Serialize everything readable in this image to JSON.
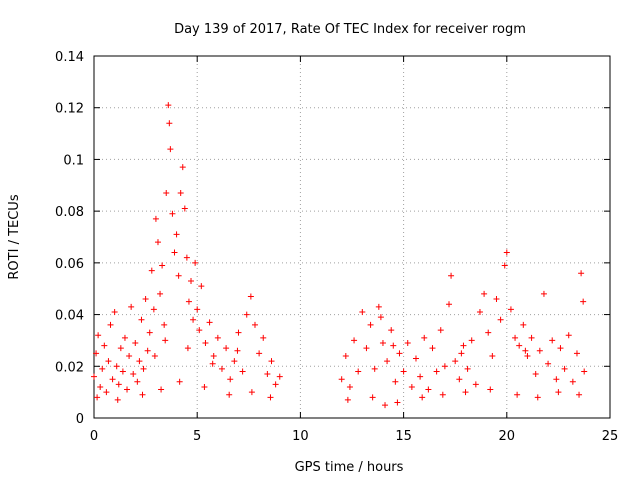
{
  "chart_data": {
    "type": "scatter",
    "title": "Day 139 of 2017, Rate Of TEC Index for receiver rogm",
    "xlabel": "GPS time / hours",
    "ylabel": "ROTI / TECUs",
    "xlim": [
      0,
      25
    ],
    "ylim": [
      0,
      0.14
    ],
    "x_ticks": [
      0,
      5,
      10,
      15,
      20,
      25
    ],
    "x_tick_labels": [
      "0",
      "5",
      "10",
      "15",
      "20",
      "25"
    ],
    "y_ticks": [
      0,
      0.02,
      0.04,
      0.06,
      0.08,
      0.1,
      0.12,
      0.14
    ],
    "y_tick_labels": [
      "0",
      "0.02",
      "0.04",
      "0.06",
      "0.08",
      "0.1",
      "0.12",
      "0.14"
    ],
    "grid": true,
    "marker": "plus",
    "marker_color": "#ff0000",
    "series": [
      {
        "points": [
          [
            0.0,
            0.016
          ],
          [
            0.1,
            0.025
          ],
          [
            0.2,
            0.032
          ],
          [
            0.3,
            0.012
          ],
          [
            0.4,
            0.019
          ],
          [
            0.5,
            0.028
          ],
          [
            0.6,
            0.01
          ],
          [
            0.7,
            0.022
          ],
          [
            0.8,
            0.036
          ],
          [
            0.9,
            0.015
          ],
          [
            1.0,
            0.041
          ],
          [
            1.1,
            0.02
          ],
          [
            1.2,
            0.013
          ],
          [
            1.3,
            0.027
          ],
          [
            1.4,
            0.018
          ],
          [
            1.5,
            0.031
          ],
          [
            1.6,
            0.011
          ],
          [
            1.7,
            0.024
          ],
          [
            1.8,
            0.043
          ],
          [
            1.9,
            0.017
          ],
          [
            2.0,
            0.029
          ],
          [
            2.1,
            0.014
          ],
          [
            2.2,
            0.022
          ],
          [
            2.3,
            0.038
          ],
          [
            2.4,
            0.019
          ],
          [
            2.5,
            0.046
          ],
          [
            2.6,
            0.026
          ],
          [
            2.7,
            0.033
          ],
          [
            2.8,
            0.057
          ],
          [
            2.9,
            0.042
          ],
          [
            3.0,
            0.077
          ],
          [
            3.1,
            0.068
          ],
          [
            3.2,
            0.048
          ],
          [
            3.3,
            0.059
          ],
          [
            3.4,
            0.036
          ],
          [
            3.5,
            0.087
          ],
          [
            3.6,
            0.121
          ],
          [
            3.65,
            0.114
          ],
          [
            3.7,
            0.104
          ],
          [
            3.8,
            0.079
          ],
          [
            3.9,
            0.064
          ],
          [
            4.0,
            0.071
          ],
          [
            4.1,
            0.055
          ],
          [
            4.2,
            0.087
          ],
          [
            4.3,
            0.097
          ],
          [
            4.4,
            0.081
          ],
          [
            4.5,
            0.062
          ],
          [
            4.6,
            0.045
          ],
          [
            4.7,
            0.053
          ],
          [
            4.8,
            0.038
          ],
          [
            4.9,
            0.06
          ],
          [
            5.0,
            0.042
          ],
          [
            5.1,
            0.034
          ],
          [
            5.2,
            0.051
          ],
          [
            5.4,
            0.029
          ],
          [
            5.6,
            0.037
          ],
          [
            5.8,
            0.024
          ],
          [
            6.0,
            0.031
          ],
          [
            6.2,
            0.019
          ],
          [
            6.4,
            0.027
          ],
          [
            6.6,
            0.015
          ],
          [
            6.8,
            0.022
          ],
          [
            7.0,
            0.033
          ],
          [
            7.2,
            0.018
          ],
          [
            7.4,
            0.04
          ],
          [
            7.6,
            0.047
          ],
          [
            7.8,
            0.036
          ],
          [
            8.0,
            0.025
          ],
          [
            8.2,
            0.031
          ],
          [
            8.4,
            0.017
          ],
          [
            8.6,
            0.022
          ],
          [
            8.8,
            0.013
          ],
          [
            9.0,
            0.016
          ],
          [
            0.15,
            0.008
          ],
          [
            1.15,
            0.007
          ],
          [
            2.35,
            0.009
          ],
          [
            3.25,
            0.011
          ],
          [
            4.15,
            0.014
          ],
          [
            5.35,
            0.012
          ],
          [
            6.55,
            0.009
          ],
          [
            7.65,
            0.01
          ],
          [
            8.55,
            0.008
          ],
          [
            2.95,
            0.024
          ],
          [
            3.45,
            0.03
          ],
          [
            4.55,
            0.027
          ],
          [
            5.75,
            0.021
          ],
          [
            6.95,
            0.026
          ],
          [
            12.0,
            0.015
          ],
          [
            12.2,
            0.024
          ],
          [
            12.4,
            0.012
          ],
          [
            12.6,
            0.03
          ],
          [
            12.8,
            0.018
          ],
          [
            13.0,
            0.041
          ],
          [
            13.2,
            0.027
          ],
          [
            13.4,
            0.036
          ],
          [
            13.6,
            0.019
          ],
          [
            13.8,
            0.043
          ],
          [
            14.0,
            0.029
          ],
          [
            14.2,
            0.022
          ],
          [
            14.4,
            0.034
          ],
          [
            14.6,
            0.014
          ],
          [
            14.8,
            0.025
          ],
          [
            15.0,
            0.018
          ],
          [
            15.2,
            0.029
          ],
          [
            15.4,
            0.012
          ],
          [
            15.6,
            0.023
          ],
          [
            15.8,
            0.016
          ],
          [
            16.0,
            0.031
          ],
          [
            16.2,
            0.011
          ],
          [
            16.4,
            0.027
          ],
          [
            16.6,
            0.018
          ],
          [
            16.8,
            0.034
          ],
          [
            17.0,
            0.02
          ],
          [
            17.2,
            0.044
          ],
          [
            17.3,
            0.055
          ],
          [
            17.5,
            0.022
          ],
          [
            17.7,
            0.015
          ],
          [
            17.9,
            0.028
          ],
          [
            18.1,
            0.019
          ],
          [
            18.3,
            0.03
          ],
          [
            18.5,
            0.013
          ],
          [
            18.7,
            0.041
          ],
          [
            18.9,
            0.048
          ],
          [
            19.1,
            0.033
          ],
          [
            19.3,
            0.024
          ],
          [
            19.5,
            0.046
          ],
          [
            19.7,
            0.038
          ],
          [
            19.9,
            0.059
          ],
          [
            20.0,
            0.064
          ],
          [
            20.2,
            0.042
          ],
          [
            20.4,
            0.031
          ],
          [
            20.6,
            0.028
          ],
          [
            20.8,
            0.036
          ],
          [
            21.0,
            0.024
          ],
          [
            21.2,
            0.031
          ],
          [
            21.4,
            0.017
          ],
          [
            21.6,
            0.026
          ],
          [
            21.8,
            0.048
          ],
          [
            22.0,
            0.021
          ],
          [
            22.2,
            0.03
          ],
          [
            22.4,
            0.015
          ],
          [
            22.6,
            0.027
          ],
          [
            22.8,
            0.019
          ],
          [
            23.0,
            0.032
          ],
          [
            23.2,
            0.014
          ],
          [
            23.4,
            0.025
          ],
          [
            23.6,
            0.056
          ],
          [
            23.7,
            0.045
          ],
          [
            23.75,
            0.018
          ],
          [
            12.3,
            0.007
          ],
          [
            13.5,
            0.008
          ],
          [
            14.1,
            0.005
          ],
          [
            14.7,
            0.006
          ],
          [
            15.9,
            0.008
          ],
          [
            16.9,
            0.009
          ],
          [
            18.0,
            0.01
          ],
          [
            19.2,
            0.011
          ],
          [
            20.5,
            0.009
          ],
          [
            21.5,
            0.008
          ],
          [
            22.5,
            0.01
          ],
          [
            23.5,
            0.009
          ],
          [
            13.9,
            0.039
          ],
          [
            14.5,
            0.028
          ],
          [
            17.8,
            0.025
          ],
          [
            20.9,
            0.026
          ]
        ]
      }
    ]
  }
}
